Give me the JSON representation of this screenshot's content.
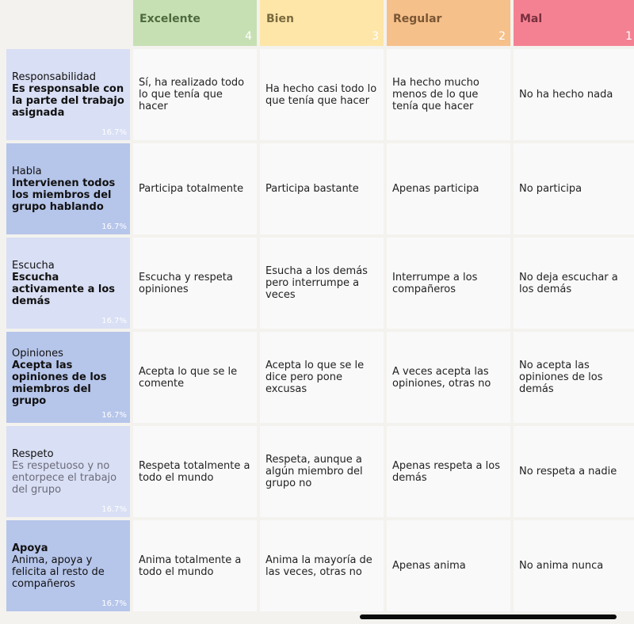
{
  "levels": [
    {
      "name": "Excelente",
      "score": "4",
      "color": "#c6e0b4"
    },
    {
      "name": "Bien",
      "score": "3",
      "color": "#fde6a8"
    },
    {
      "name": "Regular",
      "score": "2",
      "color": "#f5c08a"
    },
    {
      "name": "Mal",
      "score": "1",
      "color": "#f48192"
    }
  ],
  "criteria": [
    {
      "name": "Responsabilidad",
      "description": "Es responsable con la parte del trabajo asignada",
      "weight": "16.7%",
      "cells": [
        "Sí, ha realizado todo lo que tenía que hacer",
        "Ha hecho casi todo lo que tenía que hacer",
        "Ha hecho mucho menos de lo que tenía que hacer",
        "No ha hecho nada"
      ]
    },
    {
      "name": "Habla",
      "description": "Intervienen todos los miembros del grupo hablando",
      "weight": "16.7%",
      "cells": [
        "Participa totalmente",
        "Participa bastante",
        "Apenas participa",
        "No participa"
      ]
    },
    {
      "name": "Escucha",
      "description": "Escucha activamente a los demás",
      "weight": "16.7%",
      "cells": [
        "Escucha y respeta opiniones",
        "Esucha a los demás pero interrumpe a veces",
        "Interrumpe a los compañeros",
        "No deja escuchar a los demás"
      ]
    },
    {
      "name": "Opiniones",
      "description": "Acepta las opiniones de los miembros del grupo",
      "weight": "16.7%",
      "cells": [
        "Acepta lo que se le comente",
        "Acepta lo que se le dice pero pone excusas",
        "A veces acepta las opiniones, otras no",
        "No acepta las opiniones de los demás"
      ]
    },
    {
      "name": "Respeto",
      "description": "Es respetuoso y no entorpece el trabajo del grupo",
      "weight": "16.7%",
      "cells": [
        "Respeta totalmente a todo el mundo",
        "Respeta, aunque a algún miembro del grupo no",
        "Apenas respeta a los demás",
        "No respeta a nadie"
      ]
    },
    {
      "name": "Apoya",
      "description": "Anima, apoya y felicita al resto de compañeros",
      "weight": "16.7%",
      "cells": [
        "Anima totalmente a todo el mundo",
        "Anima la mayoría de las veces, otras no",
        "Apenas anima",
        "No anima nunca"
      ]
    }
  ]
}
